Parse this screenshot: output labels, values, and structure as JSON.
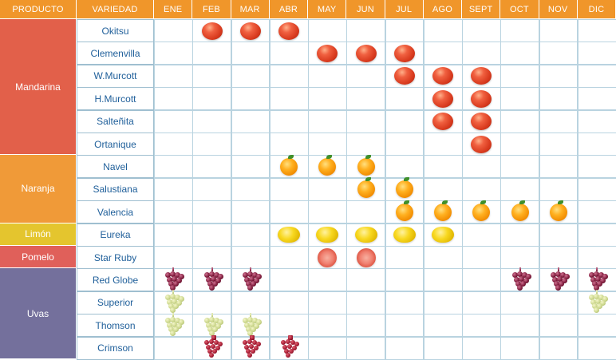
{
  "header": {
    "producto": "PRODUCTO",
    "variedad": "VARIEDAD",
    "months": [
      "ENE",
      "FEB",
      "MAR",
      "ABR",
      "MAY",
      "JUN",
      "JUL",
      "AGO",
      "SEPT",
      "OCT",
      "NOV",
      "DIC"
    ]
  },
  "colors": {
    "header": "#f0962a",
    "mandarina": "#e2604a",
    "naranja": "#f09a38",
    "limon": "#e4c52e",
    "pomelo": "#e0605a",
    "uvas": "#74709c",
    "variety_text": "#1f5f9a"
  },
  "groups": [
    {
      "producto": "Mandarina",
      "color": "#e2604a",
      "fruit": "mandarina-fruit",
      "rows": [
        {
          "variedad": "Okitsu",
          "months": [
            "FEB",
            "MAR",
            "ABR"
          ]
        },
        {
          "variedad": "Clemenvilla",
          "months": [
            "MAY",
            "JUN",
            "JUL"
          ]
        },
        {
          "variedad": "W.Murcott",
          "months": [
            "JUL",
            "AGO",
            "SEPT"
          ]
        },
        {
          "variedad": "H.Murcott",
          "months": [
            "AGO",
            "SEPT"
          ]
        },
        {
          "variedad": "Salteñita",
          "months": [
            "AGO",
            "SEPT"
          ]
        },
        {
          "variedad": "Ortanique",
          "months": [
            "SEPT"
          ]
        }
      ]
    },
    {
      "producto": "Naranja",
      "color": "#f09a38",
      "fruit": "naranja-fruit",
      "rows": [
        {
          "variedad": "Navel",
          "months": [
            "ABR",
            "MAY",
            "JUN"
          ]
        },
        {
          "variedad": "Salustiana",
          "months": [
            "JUN",
            "JUL"
          ]
        },
        {
          "variedad": "Valencia",
          "months": [
            "JUL",
            "AGO",
            "SEPT",
            "OCT",
            "NOV"
          ]
        }
      ]
    },
    {
      "producto": "Limón",
      "color": "#e4c52e",
      "fruit": "limon-fruit",
      "rows": [
        {
          "variedad": "Eureka",
          "months": [
            "ABR",
            "MAY",
            "JUN",
            "JUL",
            "AGO"
          ]
        }
      ]
    },
    {
      "producto": "Pomelo",
      "color": "#e0605a",
      "fruit": "pomelo-fruit",
      "rows": [
        {
          "variedad": "Star Ruby",
          "months": [
            "MAY",
            "JUN"
          ]
        }
      ]
    },
    {
      "producto": "Uvas",
      "color": "#74709c",
      "fruit": "grape",
      "rows": [
        {
          "variedad": "Red Globe",
          "grape": "red",
          "months": [
            "ENE",
            "FEB",
            "MAR",
            "OCT",
            "NOV",
            "DIC"
          ]
        },
        {
          "variedad": "Superior",
          "grape": "green",
          "months": [
            "ENE",
            "DIC"
          ]
        },
        {
          "variedad": "Thomson",
          "grape": "green",
          "months": [
            "ENE",
            "FEB",
            "MAR"
          ]
        },
        {
          "variedad": "Crimson",
          "grape": "crimson",
          "months": [
            "FEB",
            "MAR",
            "ABR"
          ]
        }
      ]
    }
  ]
}
